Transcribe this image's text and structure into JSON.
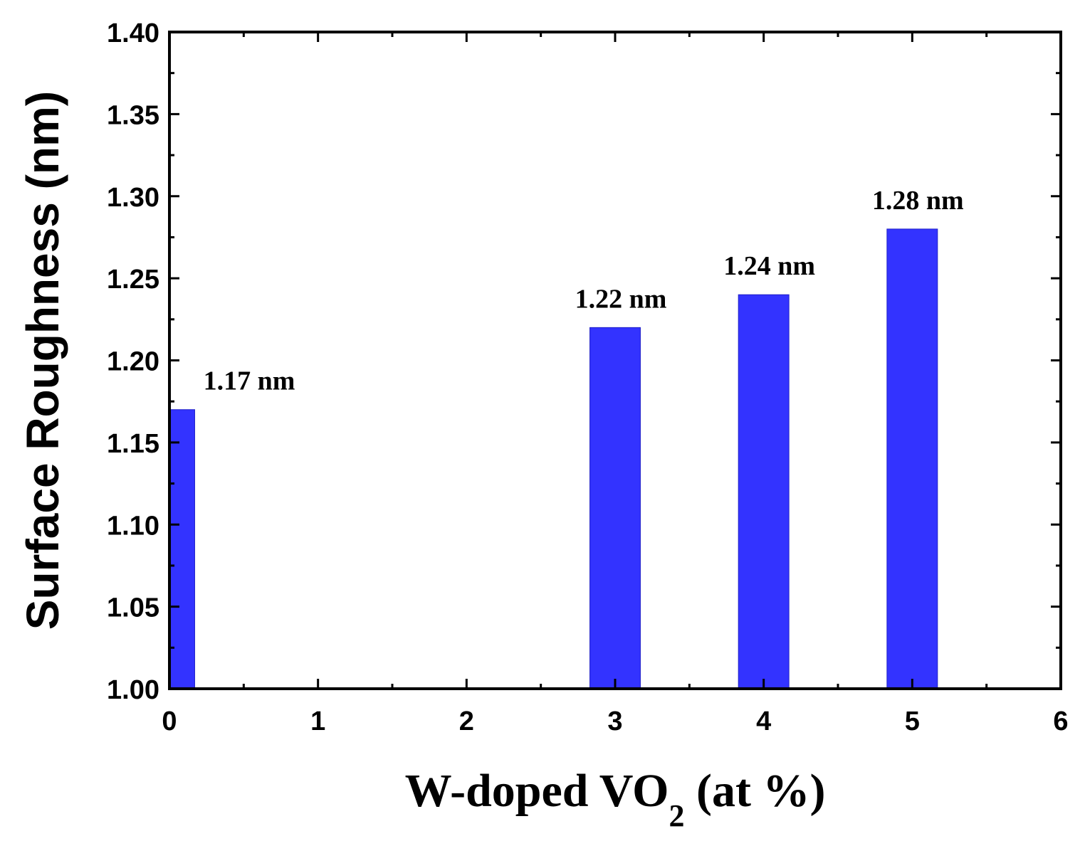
{
  "chart_data": {
    "type": "bar",
    "title": "",
    "xlabel": "W-doped VO",
    "xlabel_subscript": "2",
    "xlabel_suffix": " (at %)",
    "ylabel": "Surface Roughness (nm)",
    "xlim": [
      0,
      6
    ],
    "ylim": [
      1.0,
      1.4
    ],
    "x_ticks": [
      "0",
      "1",
      "2",
      "3",
      "4",
      "5",
      "6"
    ],
    "y_ticks": [
      "1.00",
      "1.05",
      "1.10",
      "1.15",
      "1.20",
      "1.25",
      "1.30",
      "1.35",
      "1.40"
    ],
    "grid": false,
    "bar_color": "#3333ff",
    "bar_width": 0.34,
    "series": [
      {
        "name": "Surface Roughness",
        "x": [
          0,
          3,
          4,
          5
        ],
        "values": [
          1.17,
          1.22,
          1.24,
          1.28
        ],
        "labels": [
          "1.17 nm",
          "1.22 nm",
          "1.24 nm",
          "1.28 nm"
        ]
      }
    ]
  }
}
